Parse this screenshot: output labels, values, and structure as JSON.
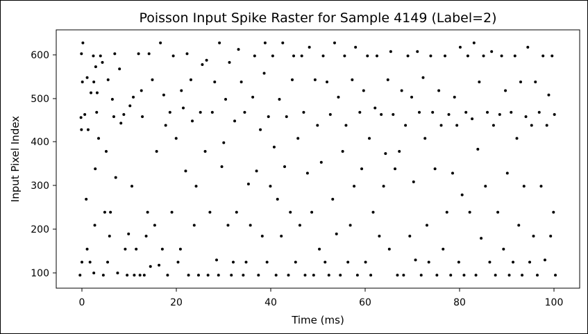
{
  "chart_data": {
    "type": "scatter",
    "title": "Poisson Input Spike Raster for Sample 4149 (Label=2)",
    "xlabel": "Time (ms)",
    "ylabel": "Input Pixel Index",
    "xlim": [
      -5,
      105
    ],
    "ylim": [
      65,
      660
    ],
    "xticks": [
      "0",
      "20",
      "40",
      "60",
      "80",
      "100"
    ],
    "yticks": [
      "100",
      "200",
      "300",
      "400",
      "500",
      "600"
    ],
    "grid": false,
    "legend": false,
    "point_color": "#000000",
    "series": [
      {
        "values": [
          [
            0,
            95
          ],
          [
            0.4,
            125
          ],
          [
            0.3,
            430
          ],
          [
            0.2,
            458
          ],
          [
            0.5,
            540
          ],
          [
            0.3,
            605
          ],
          [
            0.6,
            630
          ],
          [
            1,
            465
          ],
          [
            1.3,
            270
          ],
          [
            1.5,
            155
          ],
          [
            1.7,
            430
          ],
          [
            1.5,
            550
          ],
          [
            2.1,
            125
          ],
          [
            2.3,
            515
          ],
          [
            2.8,
            600
          ],
          [
            2.9,
            100
          ],
          [
            2.9,
            540
          ],
          [
            3.1,
            210
          ],
          [
            3.2,
            340
          ],
          [
            3.3,
            575
          ],
          [
            3.5,
            470
          ],
          [
            3.6,
            515
          ],
          [
            3.9,
            410
          ],
          [
            4.3,
            600
          ],
          [
            4.7,
            585
          ],
          [
            4.9,
            95
          ],
          [
            5.2,
            240
          ],
          [
            5.5,
            380
          ],
          [
            5.8,
            125
          ],
          [
            5.9,
            545
          ],
          [
            6.2,
            185
          ],
          [
            6.4,
            240
          ],
          [
            6.8,
            500
          ],
          [
            7.1,
            460
          ],
          [
            7.3,
            605
          ],
          [
            7.5,
            320
          ],
          [
            7.9,
            100
          ],
          [
            8.3,
            570
          ],
          [
            8.6,
            445
          ],
          [
            9.2,
            465
          ],
          [
            9.5,
            155
          ],
          [
            9.9,
            95
          ],
          [
            10.2,
            190
          ],
          [
            10.5,
            485
          ],
          [
            10.9,
            300
          ],
          [
            11.2,
            505
          ],
          [
            11.4,
            95
          ],
          [
            11.8,
            155
          ],
          [
            12.3,
            605
          ],
          [
            12.6,
            95
          ],
          [
            12.9,
            520
          ],
          [
            13.1,
            460
          ],
          [
            13.5,
            95
          ],
          [
            13.9,
            185
          ],
          [
            14.2,
            240
          ],
          [
            14.5,
            605
          ],
          [
            14.8,
            115
          ],
          [
            15.2,
            545
          ],
          [
            15.7,
            210
          ],
          [
            16.1,
            380
          ],
          [
            16.6,
            118
          ],
          [
            16.9,
            630
          ],
          [
            17.3,
            155
          ],
          [
            17.6,
            510
          ],
          [
            18,
            440
          ],
          [
            18.4,
            95
          ],
          [
            18.9,
            470
          ],
          [
            19.3,
            240
          ],
          [
            19.6,
            600
          ],
          [
            20.2,
            410
          ],
          [
            20.6,
            125
          ],
          [
            21.1,
            155
          ],
          [
            21.3,
            520
          ],
          [
            21.7,
            480
          ],
          [
            22.2,
            335
          ],
          [
            22.5,
            605
          ],
          [
            22.8,
            95
          ],
          [
            23.3,
            545
          ],
          [
            23.6,
            450
          ],
          [
            24,
            210
          ],
          [
            24.4,
            300
          ],
          [
            24.9,
            95
          ],
          [
            25.3,
            470
          ],
          [
            25.7,
            580
          ],
          [
            26.3,
            380
          ],
          [
            26.6,
            590
          ],
          [
            26.9,
            95
          ],
          [
            27.3,
            240
          ],
          [
            27.8,
            470
          ],
          [
            28.3,
            540
          ],
          [
            28.7,
            130
          ],
          [
            29.1,
            95
          ],
          [
            29.3,
            630
          ],
          [
            29.8,
            345
          ],
          [
            30.2,
            400
          ],
          [
            30.6,
            500
          ],
          [
            31.1,
            210
          ],
          [
            31.4,
            585
          ],
          [
            31.8,
            95
          ],
          [
            32.2,
            125
          ],
          [
            32.5,
            450
          ],
          [
            32.9,
            240
          ],
          [
            33.3,
            615
          ],
          [
            33.9,
            540
          ],
          [
            34.3,
            95
          ],
          [
            34.6,
            470
          ],
          [
            34.9,
            125
          ],
          [
            35.4,
            305
          ],
          [
            35.8,
            210
          ],
          [
            36.3,
            505
          ],
          [
            36.7,
            600
          ],
          [
            37.1,
            335
          ],
          [
            37.5,
            95
          ],
          [
            37.9,
            430
          ],
          [
            38.3,
            185
          ],
          [
            38.7,
            560
          ],
          [
            38.9,
            630
          ],
          [
            39.3,
            125
          ],
          [
            39.6,
            460
          ],
          [
            40,
            300
          ],
          [
            40.5,
            600
          ],
          [
            40.8,
            390
          ],
          [
            41.2,
            95
          ],
          [
            41.5,
            270
          ],
          [
            41.9,
            500
          ],
          [
            42.3,
            185
          ],
          [
            42.6,
            630
          ],
          [
            43,
            345
          ],
          [
            43.4,
            460
          ],
          [
            43.8,
            95
          ],
          [
            44.2,
            240
          ],
          [
            44.6,
            545
          ],
          [
            44.9,
            600
          ],
          [
            45.3,
            125
          ],
          [
            45.8,
            410
          ],
          [
            46.2,
            210
          ],
          [
            46.6,
            600
          ],
          [
            47,
            470
          ],
          [
            47.3,
            95
          ],
          [
            47.8,
            330
          ],
          [
            48.2,
            620
          ],
          [
            48.7,
            240
          ],
          [
            49.1,
            95
          ],
          [
            49.4,
            545
          ],
          [
            49.9,
            440
          ],
          [
            50.3,
            155
          ],
          [
            50.7,
            355
          ],
          [
            51.1,
            600
          ],
          [
            51.5,
            125
          ],
          [
            51.9,
            540
          ],
          [
            52.3,
            95
          ],
          [
            52.6,
            465
          ],
          [
            53.1,
            270
          ],
          [
            53.5,
            630
          ],
          [
            53.9,
            190
          ],
          [
            54.3,
            505
          ],
          [
            54.7,
            95
          ],
          [
            55.2,
            380
          ],
          [
            55.6,
            600
          ],
          [
            55.9,
            440
          ],
          [
            56.3,
            125
          ],
          [
            56.8,
            210
          ],
          [
            57.2,
            545
          ],
          [
            57.6,
            300
          ],
          [
            57.9,
            620
          ],
          [
            58.3,
            95
          ],
          [
            58.8,
            470
          ],
          [
            59.2,
            340
          ],
          [
            59.6,
            520
          ],
          [
            60,
            125
          ],
          [
            60.4,
            600
          ],
          [
            60.8,
            410
          ],
          [
            61.1,
            95
          ],
          [
            61.6,
            240
          ],
          [
            62,
            480
          ],
          [
            62.4,
            600
          ],
          [
            62.9,
            185
          ],
          [
            63.3,
            465
          ],
          [
            63.8,
            300
          ],
          [
            64.2,
            375
          ],
          [
            64.7,
            545
          ],
          [
            65,
            155
          ],
          [
            65.3,
            610
          ],
          [
            65.8,
            465
          ],
          [
            66.2,
            340
          ],
          [
            66.7,
            95
          ],
          [
            67.1,
            380
          ],
          [
            67.6,
            520
          ],
          [
            68,
            95
          ],
          [
            68.4,
            440
          ],
          [
            68.9,
            600
          ],
          [
            69.3,
            185
          ],
          [
            69.7,
            505
          ],
          [
            70.1,
            310
          ],
          [
            70.5,
            130
          ],
          [
            70.9,
            610
          ],
          [
            71.3,
            470
          ],
          [
            71.7,
            95
          ],
          [
            72.1,
            550
          ],
          [
            72.5,
            410
          ],
          [
            72.9,
            210
          ],
          [
            73.3,
            125
          ],
          [
            73.7,
            600
          ],
          [
            74.1,
            470
          ],
          [
            74.6,
            340
          ],
          [
            75,
            95
          ],
          [
            75.4,
            520
          ],
          [
            75.9,
            440
          ],
          [
            76.3,
            155
          ],
          [
            76.7,
            600
          ],
          [
            77.1,
            240
          ],
          [
            77.5,
            465
          ],
          [
            77.9,
            95
          ],
          [
            78.3,
            330
          ],
          [
            78.7,
            505
          ],
          [
            79.2,
            440
          ],
          [
            79.6,
            125
          ],
          [
            79.9,
            620
          ],
          [
            80.3,
            280
          ],
          [
            80.7,
            95
          ],
          [
            81.1,
            470
          ],
          [
            81.5,
            600
          ],
          [
            81.9,
            240
          ],
          [
            82.4,
            455
          ],
          [
            82.8,
            630
          ],
          [
            83.2,
            95
          ],
          [
            83.6,
            385
          ],
          [
            83.9,
            540
          ],
          [
            84.3,
            180
          ],
          [
            84.8,
            600
          ],
          [
            85.2,
            300
          ],
          [
            85.6,
            470
          ],
          [
            86.1,
            125
          ],
          [
            86.5,
            610
          ],
          [
            86.9,
            440
          ],
          [
            87.3,
            95
          ],
          [
            87.8,
            240
          ],
          [
            88.2,
            465
          ],
          [
            88.6,
            600
          ],
          [
            89,
            155
          ],
          [
            89.4,
            520
          ],
          [
            89.8,
            330
          ],
          [
            90.2,
            95
          ],
          [
            90.6,
            470
          ],
          [
            91,
            125
          ],
          [
            91.4,
            600
          ],
          [
            91.8,
            410
          ],
          [
            92.2,
            210
          ],
          [
            92.6,
            540
          ],
          [
            92.9,
            95
          ],
          [
            93.3,
            300
          ],
          [
            93.7,
            460
          ],
          [
            94.1,
            620
          ],
          [
            94.5,
            125
          ],
          [
            94.9,
            440
          ],
          [
            95.3,
            185
          ],
          [
            95.7,
            540
          ],
          [
            96.1,
            95
          ],
          [
            96.5,
            470
          ],
          [
            96.9,
            300
          ],
          [
            97.3,
            600
          ],
          [
            97.7,
            130
          ],
          [
            98.1,
            440
          ],
          [
            98.5,
            510
          ],
          [
            98.9,
            185
          ],
          [
            99.2,
            600
          ],
          [
            99.5,
            240
          ],
          [
            99.7,
            465
          ],
          [
            99.9,
            95
          ]
        ]
      }
    ]
  }
}
